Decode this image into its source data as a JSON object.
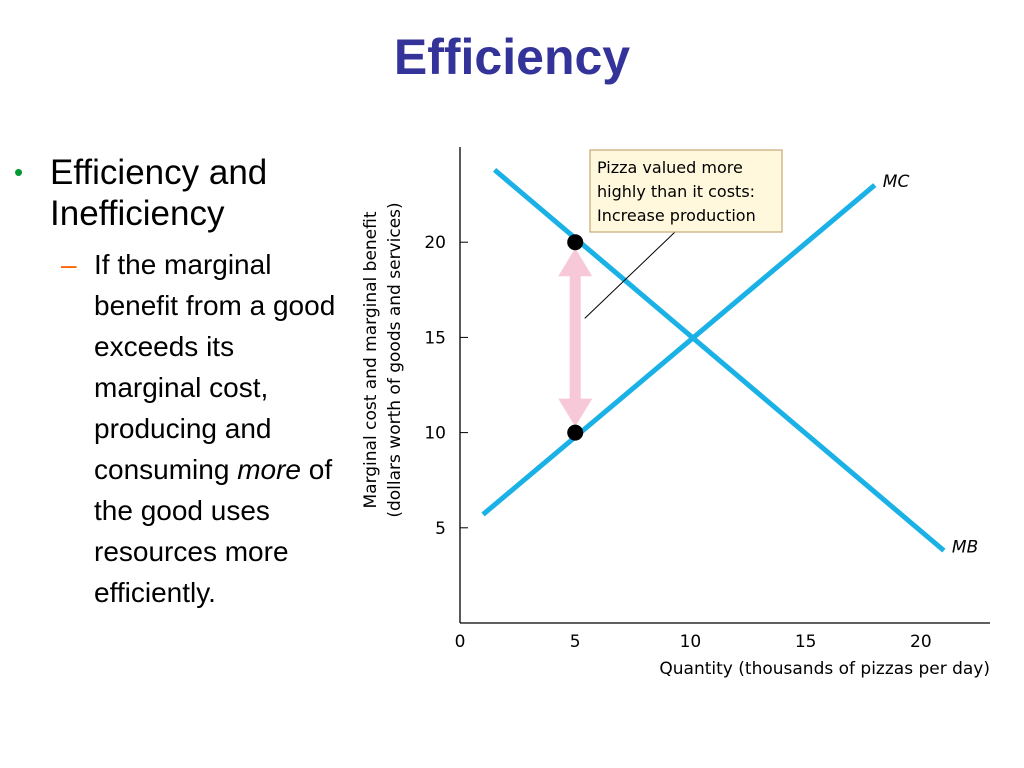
{
  "title": "Efficiency",
  "bullets": {
    "main": "Efficiency and Inefficiency",
    "sub_before": "If the marginal benefit from a good exceeds its marginal cost, producing and consuming",
    "sub_emph": "more",
    "sub_after": "of the good uses resources more efficiently."
  },
  "colors": {
    "title": "#333399",
    "bullet": "#009933",
    "dash": "#ff6600",
    "curves": "#1ab1e6",
    "arrow": "#f7c8d8",
    "annotation_bg": "#fff8dc"
  },
  "chart_data": {
    "type": "line",
    "xlabel": "Quantity (thousands of pizzas per day)",
    "ylabel_line1": "Marginal cost and marginal benefit",
    "ylabel_line2": "(dollars worth of goods and services)",
    "xlim": [
      0,
      23
    ],
    "ylim": [
      0,
      25
    ],
    "x_ticks": [
      0,
      5,
      10,
      15,
      20
    ],
    "y_ticks": [
      5,
      10,
      15,
      20
    ],
    "series": [
      {
        "name": "MC",
        "x": [
          1,
          18
        ],
        "y": [
          5.7,
          23
        ]
      },
      {
        "name": "MB",
        "x": [
          1.5,
          21
        ],
        "y": [
          23.8,
          3.8
        ]
      }
    ],
    "points": [
      {
        "x": 5,
        "y": 20
      },
      {
        "x": 5,
        "y": 10
      }
    ],
    "arrow": {
      "x": 5,
      "y_from": 10,
      "y_to": 20
    },
    "annotation": {
      "lines": [
        "Pizza valued more",
        "highly than it costs:",
        "Increase production"
      ],
      "points_to": {
        "x": 5.5,
        "y": 16
      }
    }
  }
}
